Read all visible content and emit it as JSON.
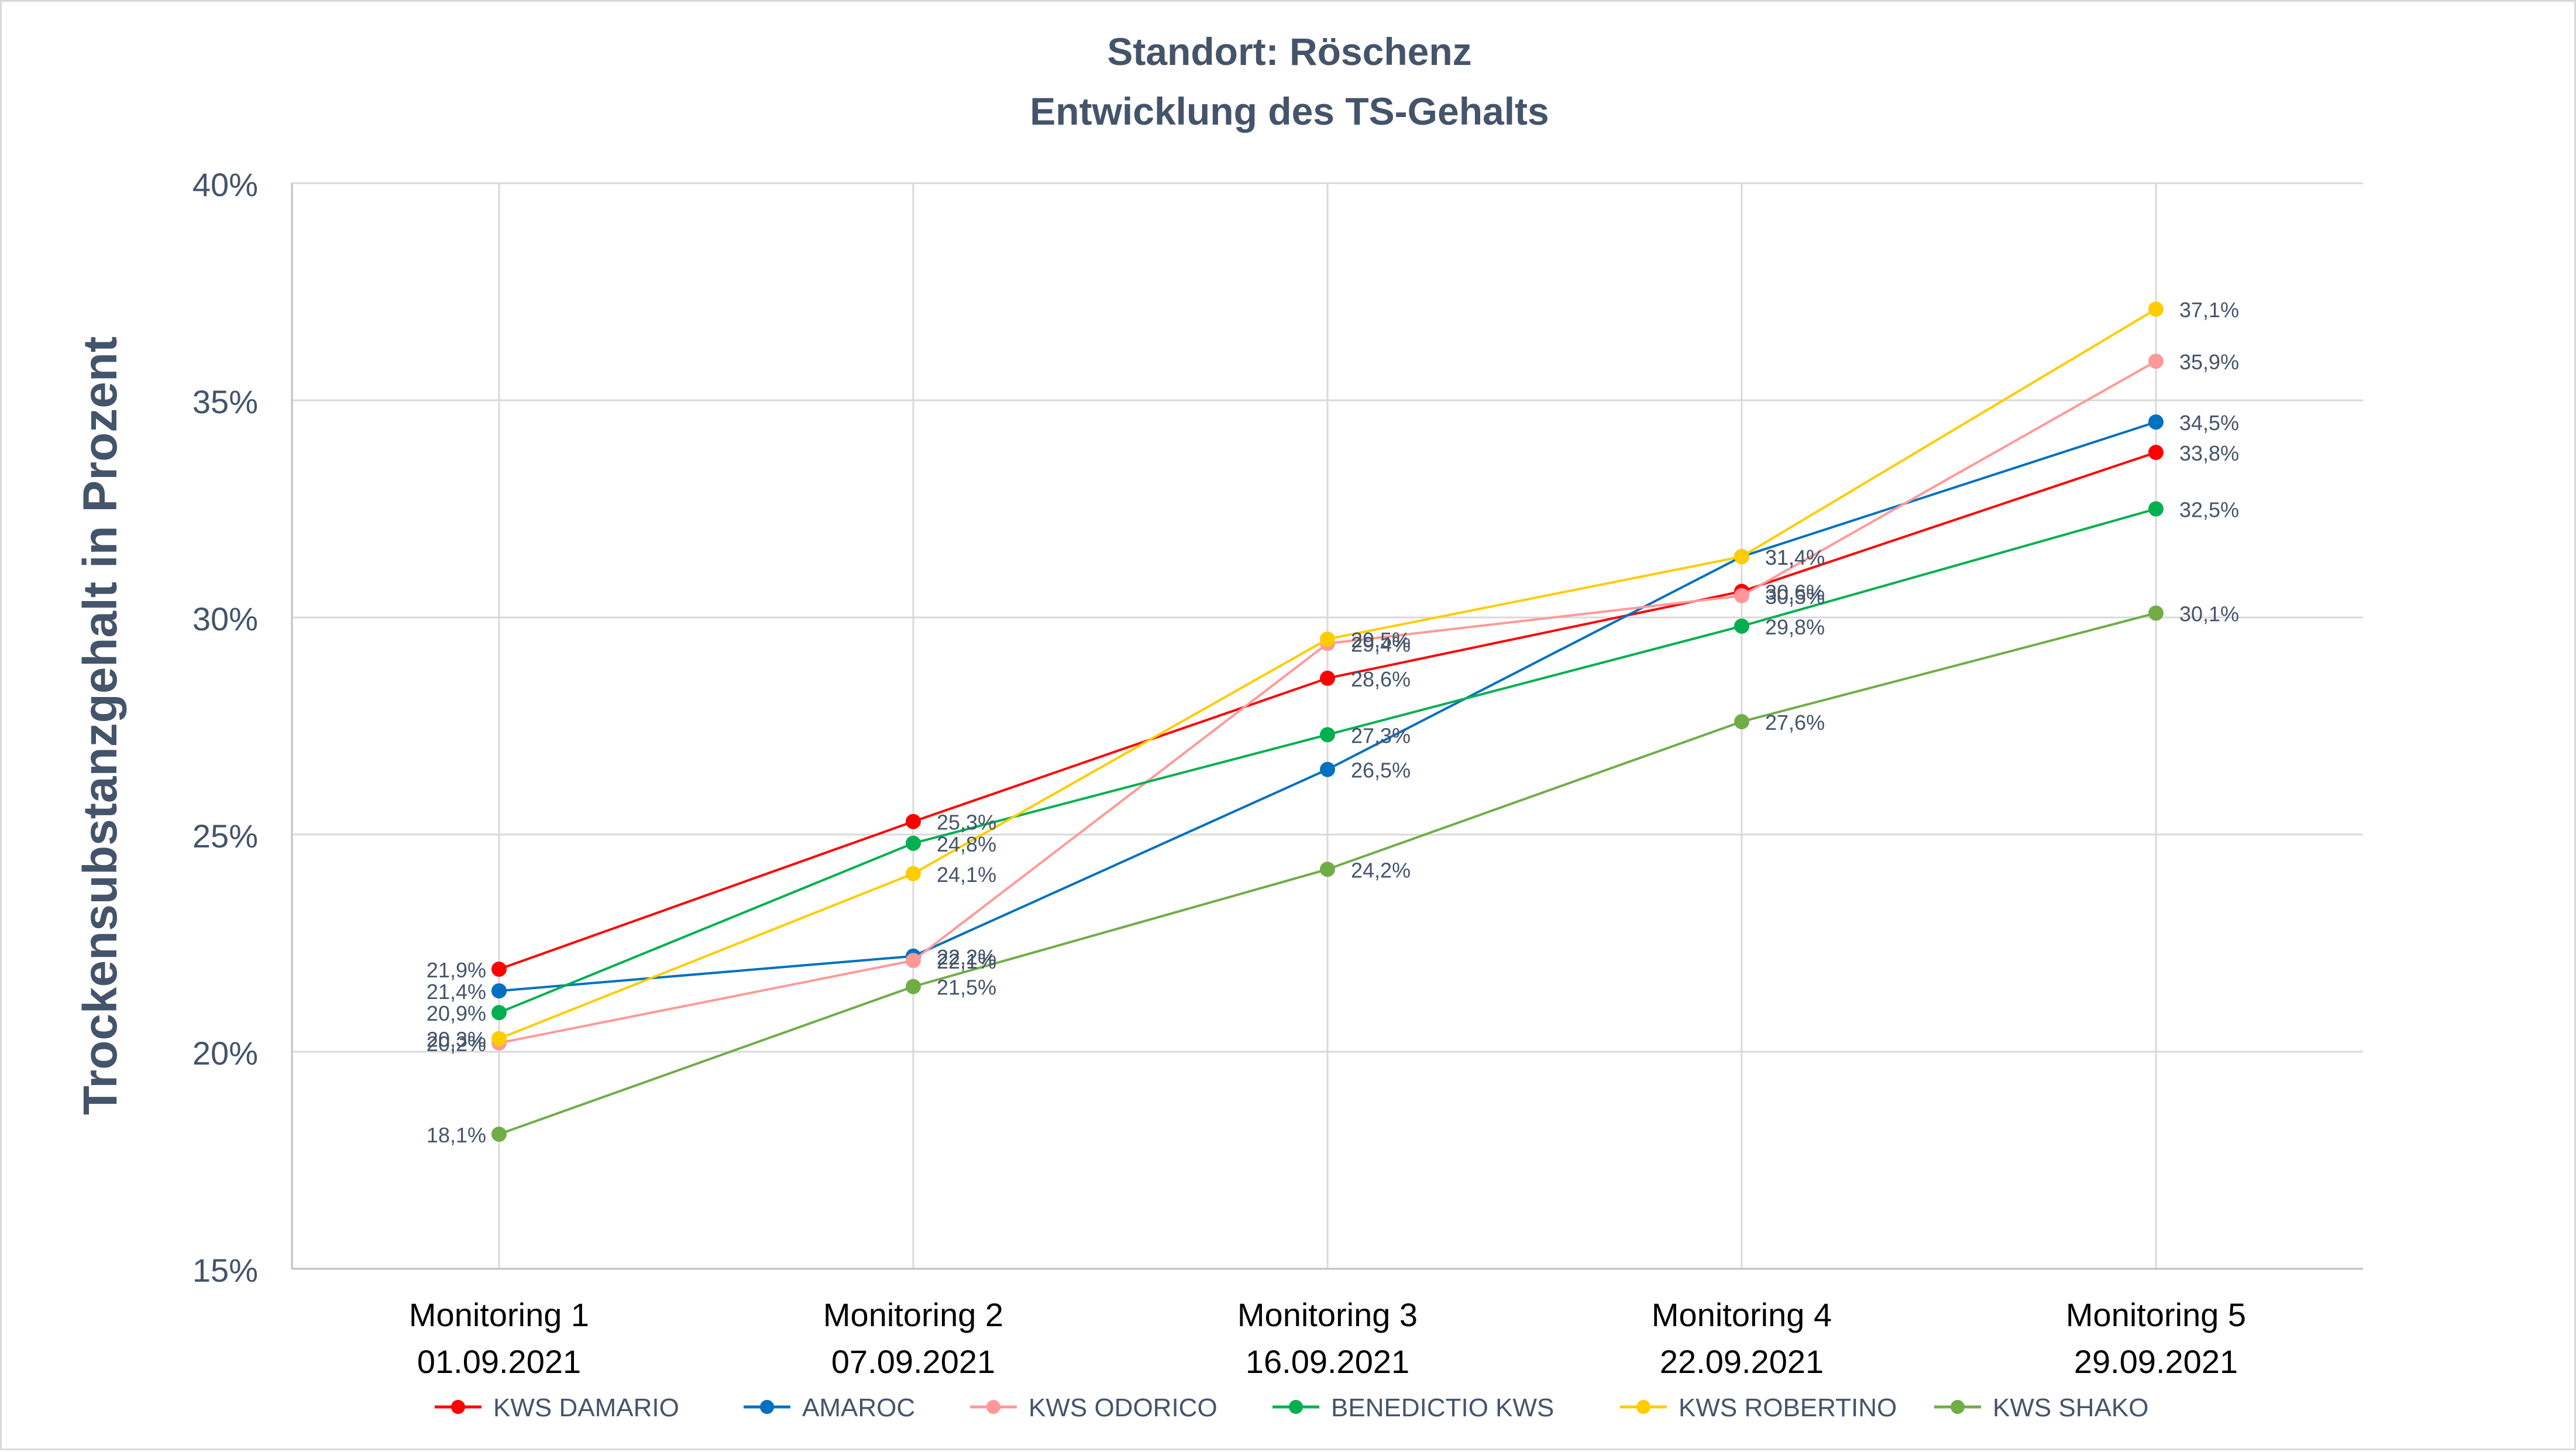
{
  "chart_data": {
    "type": "line",
    "title": "Standort: Röschenz",
    "subtitle": "Entwicklung des TS-Gehalts",
    "ylabel": "Trockensubstanzgehalt in Prozent",
    "xlabel": "",
    "categories": [
      [
        "Monitoring 1",
        "01.09.2021"
      ],
      [
        "Monitoring 2",
        "07.09.2021"
      ],
      [
        "Monitoring 3",
        "16.09.2021"
      ],
      [
        "Monitoring 4",
        "22.09.2021"
      ],
      [
        "Monitoring 5",
        "29.09.2021"
      ]
    ],
    "ylim": [
      15,
      40
    ],
    "yticks": [
      15,
      20,
      25,
      30,
      35,
      40
    ],
    "ytick_labels": [
      "15%",
      "20%",
      "25%",
      "30%",
      "35%",
      "40%"
    ],
    "grid": true,
    "legend_position": "bottom",
    "series": [
      {
        "name": "KWS DAMARIO",
        "color": "#ff0000",
        "values": [
          21.9,
          25.3,
          28.6,
          30.6,
          33.8
        ],
        "labels": [
          "21,9%",
          "25,3%",
          "28,6%",
          "30,6%",
          "33,8%"
        ]
      },
      {
        "name": "AMAROC",
        "color": "#0070c0",
        "values": [
          21.4,
          22.2,
          26.5,
          31.4,
          34.5
        ],
        "labels": [
          "21,4%",
          "22,2%",
          "26,5%",
          "31,4%",
          "34,5%"
        ]
      },
      {
        "name": "KWS ODORICO",
        "color": "#ff9999",
        "values": [
          20.2,
          22.1,
          29.4,
          30.5,
          35.9
        ],
        "labels": [
          "20,2%",
          "22,1%",
          "29,4%",
          "30,5%",
          "35,9%"
        ]
      },
      {
        "name": "BENEDICTIO KWS",
        "color": "#00b050",
        "values": [
          20.9,
          24.8,
          27.3,
          29.8,
          32.5
        ],
        "labels": [
          "20,9%",
          "24,8%",
          "27,3%",
          "29,8%",
          "32,5%"
        ]
      },
      {
        "name": "KWS ROBERTINO",
        "color": "#ffcc00",
        "values": [
          20.3,
          24.1,
          29.5,
          31.4,
          37.1
        ],
        "labels": [
          "20,3%",
          "24,1%",
          "29,5%",
          "31,4%",
          "37,1%"
        ]
      },
      {
        "name": "KWS SHAKO",
        "color": "#70ad47",
        "values": [
          18.1,
          21.5,
          24.2,
          27.6,
          30.1
        ],
        "labels": [
          "18,1%",
          "21,5%",
          "24,2%",
          "27,6%",
          "30,1%"
        ]
      }
    ]
  }
}
